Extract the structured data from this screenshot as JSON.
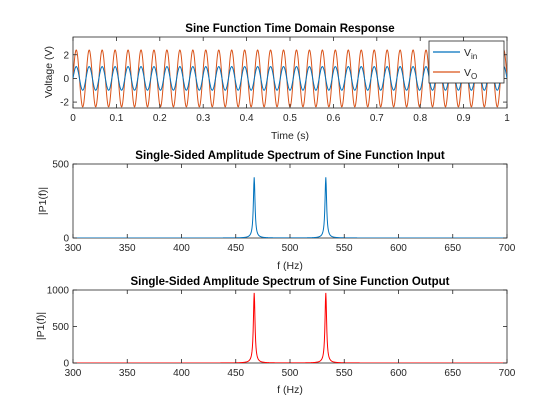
{
  "chart_data": [
    {
      "type": "line",
      "title": "Sine Function Time Domain Response",
      "xlabel": "Time (s)",
      "ylabel": "Voltage (V)",
      "xlim": [
        0,
        1
      ],
      "ylim": [
        -2.5,
        3.5
      ],
      "xticks": [
        "0",
        "0.1",
        "0.2",
        "0.3",
        "0.4",
        "0.5",
        "0.6",
        "0.7",
        "0.8",
        "0.9",
        "1"
      ],
      "yticks": [
        "-2",
        "0",
        "2"
      ],
      "legend": {
        "position": "top-right",
        "entries": [
          {
            "base": "V",
            "sub": "in",
            "color": "#0072BD"
          },
          {
            "base": "V",
            "sub": "O",
            "color": "#D95319"
          }
        ]
      },
      "series": [
        {
          "name": "Vin",
          "amplitude": 1.0,
          "cycles": 33.5,
          "color": "#0072BD"
        },
        {
          "name": "VO",
          "amplitude": 2.4,
          "cycles": 33.5,
          "color": "#D95319"
        }
      ],
      "grid": false
    },
    {
      "type": "line",
      "title": "Single-Sided Amplitude Spectrum of Sine Function Input",
      "xlabel": "f (Hz)",
      "ylabel": "|P1(f)|",
      "xlim": [
        300,
        700
      ],
      "ylim": [
        0,
        500
      ],
      "xticks": [
        "300",
        "350",
        "400",
        "450",
        "500",
        "550",
        "600",
        "650",
        "700"
      ],
      "yticks": [
        "0",
        "500"
      ],
      "peaks": [
        {
          "f": 467,
          "value": 410
        },
        {
          "f": 533,
          "value": 410
        }
      ],
      "color": "#0072BD",
      "grid": false
    },
    {
      "type": "line",
      "title": "Single-Sided Amplitude Spectrum of Sine Function Output",
      "xlabel": "f (Hz)",
      "ylabel": "|P1(f)|",
      "xlim": [
        300,
        700
      ],
      "ylim": [
        0,
        1000
      ],
      "xticks": [
        "300",
        "350",
        "400",
        "450",
        "500",
        "550",
        "600",
        "650",
        "700"
      ],
      "yticks": [
        "0",
        "500",
        "1000"
      ],
      "peaks": [
        {
          "f": 467,
          "value": 960
        },
        {
          "f": 533,
          "value": 960
        }
      ],
      "color": "#FF0000",
      "grid": false
    }
  ]
}
